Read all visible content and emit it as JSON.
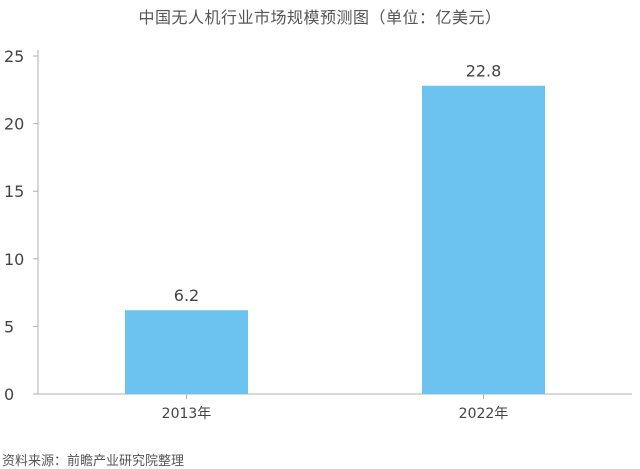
{
  "chart_data": {
    "type": "bar",
    "title": "中国无人机行业市场规模预测图（单位：亿美元）",
    "categories": [
      "2013年",
      "2022年"
    ],
    "values": [
      6.2,
      22.8
    ],
    "data_labels": [
      "6.2",
      "22.8"
    ],
    "ylim": [
      0,
      25
    ],
    "yticks": [
      0,
      5,
      10,
      15,
      20,
      25
    ],
    "ytick_labels": [
      "0",
      "5",
      "10",
      "15",
      "20",
      "25"
    ],
    "xlabel": "",
    "ylabel": "",
    "grid": false,
    "legend": "none",
    "bar_color": "#6cc3ef",
    "axis_color": "#b0b0b0"
  },
  "source": "资料来源：前瞻产业研究院整理"
}
